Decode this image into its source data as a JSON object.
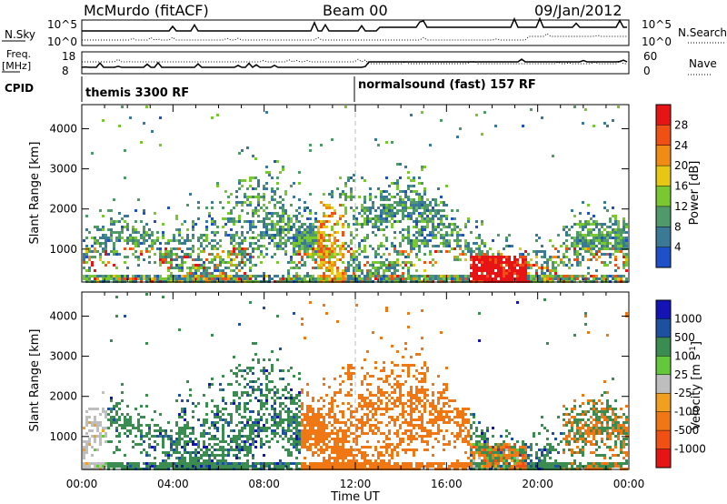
{
  "header": {
    "station": "McMurdo (fitACF)",
    "beam": "Beam 00",
    "date": "09/Jan/2012"
  },
  "upper_panels": {
    "nsky": {
      "label": "N.Sky",
      "ticks": [
        "10^5",
        "10^0"
      ],
      "right_label": "N.Search",
      "right_ticks": [
        "10^5",
        "10^0"
      ]
    },
    "freq": {
      "label_line1": "Freq.",
      "label_line2": "[MHz]",
      "ticks": [
        "18",
        "8"
      ],
      "right_label": "Nave",
      "right_ticks": [
        "60",
        "0"
      ]
    },
    "cpid": {
      "label": "CPID",
      "modes": [
        "themis 3300 RF",
        "normalsound (fast) 157 RF"
      ]
    }
  },
  "colors": {
    "power": [
      "#1414e6",
      "#1e50c8",
      "#3a7a96",
      "#4f9a68",
      "#7ac830",
      "#e6c814",
      "#f08c14",
      "#f05014",
      "#e61414"
    ],
    "velocity": [
      "#1414b4",
      "#1e50a0",
      "#3a8c50",
      "#64c83c",
      "#bebebe",
      "#bebebe",
      "#f0a01e",
      "#f07814",
      "#f05014",
      "#e61414"
    ]
  },
  "chart_data": [
    {
      "type": "heatmap",
      "name": "power",
      "ylabel": "Slant Range [km]",
      "yticks": [
        "1000",
        "2000",
        "3000",
        "4000"
      ],
      "ylim": [
        180,
        4600
      ],
      "colorbar": {
        "label": "Power [dB]",
        "ticks": [
          "4",
          "8",
          "12",
          "16",
          "20",
          "24",
          "28"
        ],
        "range": [
          0,
          30
        ]
      }
    },
    {
      "type": "heatmap",
      "name": "velocity",
      "ylabel": "Slant Range [km]",
      "yticks": [
        "1000",
        "2000",
        "3000",
        "4000"
      ],
      "ylim": [
        180,
        4600
      ],
      "colorbar": {
        "label": "Velocity [m s-1]",
        "ticks": [
          "1000",
          "500",
          "100",
          "25",
          "-25",
          "-100",
          "-500",
          "-1000"
        ]
      }
    }
  ],
  "xaxis": {
    "label": "Time UT",
    "ticks": [
      "00:00",
      "04:00",
      "08:00",
      "12:00",
      "16:00",
      "20:00",
      "00:00"
    ],
    "range_hours": [
      0,
      24
    ]
  }
}
